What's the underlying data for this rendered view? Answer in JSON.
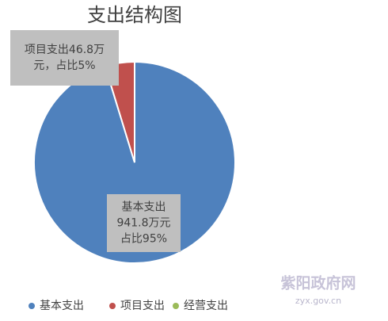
{
  "chart_data": {
    "type": "pie",
    "title": "支出结构图",
    "categories": [
      "基本支出",
      "项目支出",
      "经营支出"
    ],
    "values": [
      941.8,
      46.8,
      0
    ],
    "value_labels": [
      [
        "基本支出",
        "941.8万元",
        "占比95%"
      ],
      [
        "项目支出46.8万",
        "元，占比5%"
      ],
      null
    ],
    "colors": [
      "#4f81bd",
      "#c0504d",
      "#9bbb59"
    ],
    "legend": "bottom"
  },
  "watermark": {
    "name": "紫阳政府网",
    "url": "zyx.gov.cn"
  }
}
